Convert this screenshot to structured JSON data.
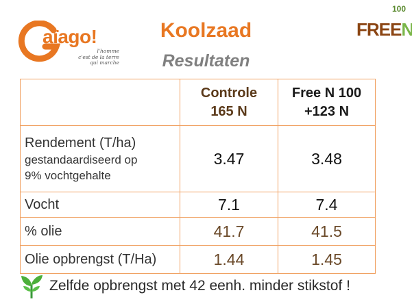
{
  "logo_left": {
    "word": "aïago!",
    "tagline": [
      "l'homme",
      "c'est de la terre",
      "qui marche"
    ],
    "colors": {
      "orange": "#e87722",
      "grey": "#8a8a8a"
    }
  },
  "logo_right": {
    "free": "FREE",
    "n": "N",
    "hundred": "100",
    "colors": {
      "brown": "#8b4513",
      "green": "#7ab648"
    }
  },
  "title": "Koolzaad",
  "subtitle": "Resultaten",
  "table": {
    "headers": [
      {
        "line1": "",
        "line2": ""
      },
      {
        "line1": "Controle",
        "line2": "165 N"
      },
      {
        "line1": "Free N 100",
        "line2": "+123 N"
      }
    ],
    "rows": [
      {
        "label": "Rendement (T/ha)",
        "sublabel": [
          "gestandaardiseerd op",
          "9% vochtgehalte"
        ],
        "controle": "3.47",
        "free_n": "3.48"
      },
      {
        "label": "Vocht",
        "controle": "7.1",
        "free_n": "7.4"
      },
      {
        "label": "% olie",
        "controle": "41.7",
        "free_n": "41.5"
      },
      {
        "label": "Olie opbrengst (T/Ha)",
        "controle": "1.44",
        "free_n": "1.45"
      }
    ]
  },
  "footer": {
    "text": "Zelfde opbrengst met 42 eenh. minder stikstof !",
    "icon": "sprout-icon"
  },
  "colors": {
    "accent": "#e87722",
    "subtitle": "#808080",
    "table_border": "#f0a060",
    "green": "#3a9a3a"
  }
}
